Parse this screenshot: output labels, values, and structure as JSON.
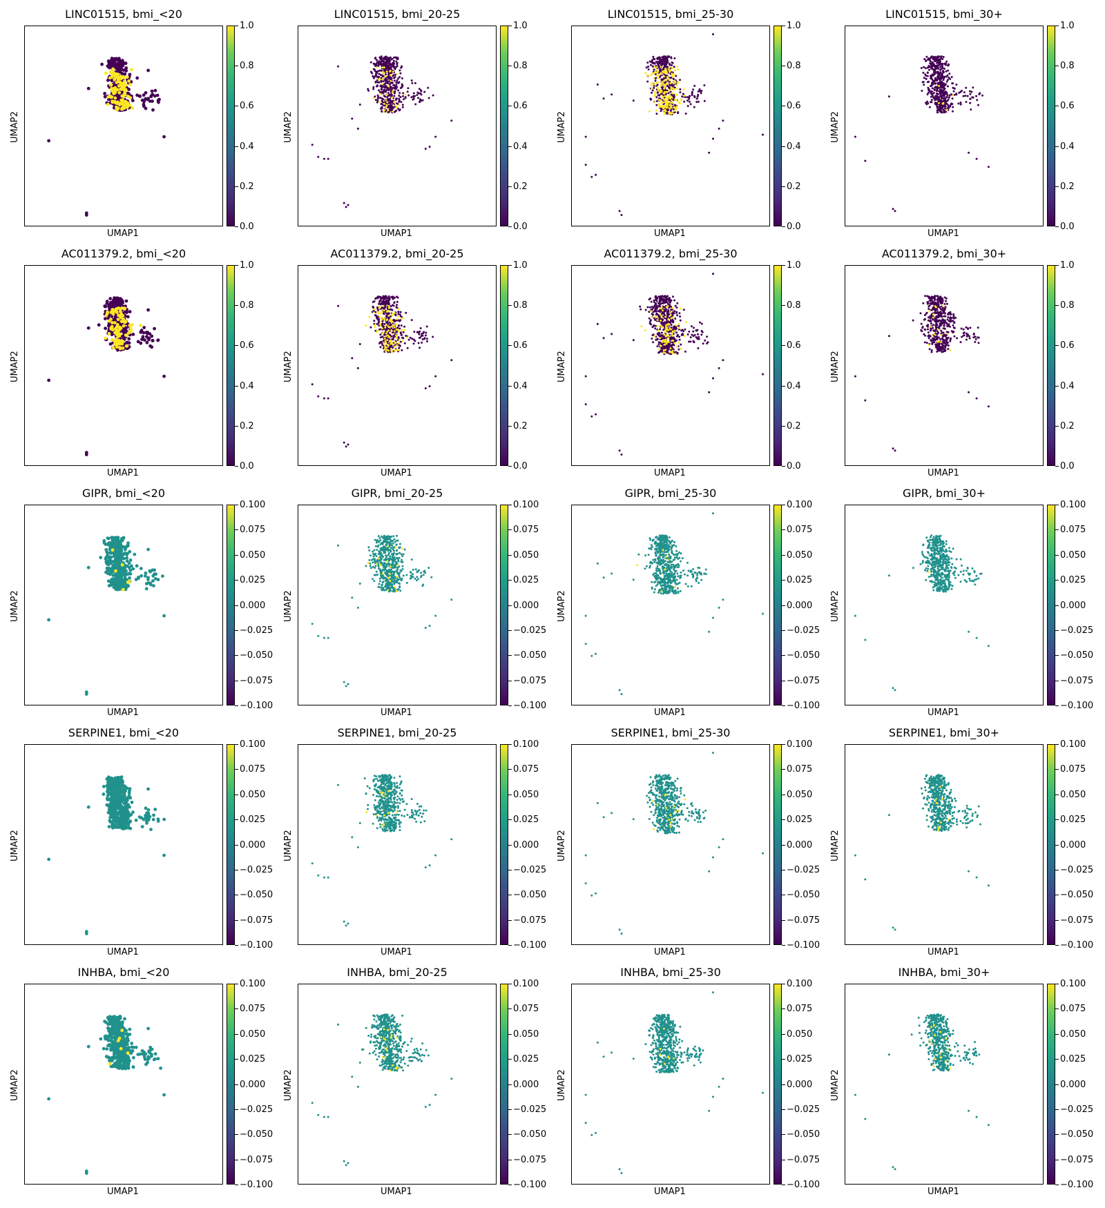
{
  "figure": {
    "x_label": "UMAP1",
    "y_label": "UMAP2",
    "columns": [
      "bmi_<20",
      "bmi_20-25",
      "bmi_25-30",
      "bmi_30+"
    ],
    "rows": [
      {
        "gene": "LINC01515",
        "colorbar_ticks": [
          "0.0",
          "0.2",
          "0.4",
          "0.6",
          "0.8",
          "1.0"
        ],
        "vmin": 0.0,
        "vmax": 1.0,
        "base": "#440154"
      },
      {
        "gene": "AC011379.2",
        "colorbar_ticks": [
          "0.0",
          "0.2",
          "0.4",
          "0.6",
          "0.8",
          "1.0"
        ],
        "vmin": 0.0,
        "vmax": 1.0,
        "base": "#440154"
      },
      {
        "gene": "GIPR",
        "colorbar_ticks": [
          "−0.100",
          "−0.075",
          "−0.050",
          "−0.025",
          "0.000",
          "0.025",
          "0.050",
          "0.075",
          "0.100"
        ],
        "vmin": -0.1,
        "vmax": 0.1,
        "base": "#21918c"
      },
      {
        "gene": "SERPINE1",
        "colorbar_ticks": [
          "−0.100",
          "−0.075",
          "−0.050",
          "−0.025",
          "0.000",
          "0.025",
          "0.050",
          "0.075",
          "0.100"
        ],
        "vmin": -0.1,
        "vmax": 0.1,
        "base": "#21918c"
      },
      {
        "gene": "INHBA",
        "colorbar_ticks": [
          "−0.100",
          "−0.075",
          "−0.050",
          "−0.025",
          "0.000",
          "0.025",
          "0.050",
          "0.075",
          "0.100"
        ],
        "vmin": -0.1,
        "vmax": 0.1,
        "base": "#21918c"
      }
    ],
    "titles": [
      [
        "LINC01515, bmi_<20",
        "LINC01515, bmi_20-25",
        "LINC01515, bmi_25-30",
        "LINC01515, bmi_30+"
      ],
      [
        "AC011379.2, bmi_<20",
        "AC011379.2, bmi_20-25",
        "AC011379.2, bmi_25-30",
        "AC011379.2, bmi_30+"
      ],
      [
        "GIPR, bmi_<20",
        "GIPR, bmi_20-25",
        "GIPR, bmi_25-30",
        "GIPR, bmi_30+"
      ],
      [
        "SERPINE1, bmi_<20",
        "SERPINE1, bmi_20-25",
        "SERPINE1, bmi_25-30",
        "SERPINE1, bmi_30+"
      ],
      [
        "INHBA, bmi_<20",
        "INHBA, bmi_20-25",
        "INHBA, bmi_25-30",
        "INHBA, bmi_30+"
      ]
    ],
    "colormap": [
      "#440154",
      "#3b528b",
      "#21918c",
      "#5ec962",
      "#fde725"
    ],
    "highlight_color": "#fde725"
  },
  "chart_data": {
    "type": "scatter",
    "layout": "5 rows x 4 columns grid of UMAP embeddings",
    "grid": false,
    "legend": "colorbar right of each panel",
    "panels_note": "Each panel shows cells in UMAP space colored by gene expression; most cells at base value, a minority highlighted at the max value (yellow).",
    "highlight_fraction_by_row": {
      "LINC01515": [
        0.25,
        0.08,
        0.35,
        0.01
      ],
      "AC011379.2": [
        0.2,
        0.2,
        0.15,
        0.05
      ],
      "GIPR": [
        0.02,
        0.02,
        0.015,
        0.008
      ],
      "SERPINE1": [
        0.0,
        0.03,
        0.02,
        0.02
      ],
      "INHBA": [
        0.01,
        0.03,
        0.01,
        0.02
      ]
    }
  }
}
